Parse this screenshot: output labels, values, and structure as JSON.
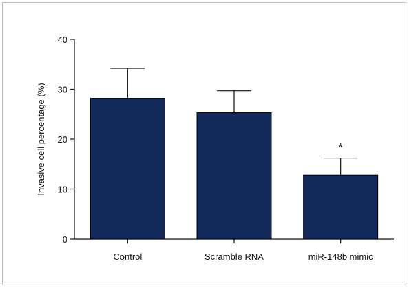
{
  "chart_data": {
    "type": "bar",
    "title": "",
    "xlabel": "",
    "ylabel": "Invasive cell percentage (%)",
    "ylim": [
      0,
      40
    ],
    "yticks": [
      0,
      10,
      20,
      30,
      40
    ],
    "categories": [
      "Control",
      "Scramble RNA",
      "miR-148b mimic"
    ],
    "values": [
      28.2,
      25.3,
      12.8
    ],
    "error_upper": [
      6.0,
      4.4,
      3.4
    ],
    "annotations": [
      "",
      "",
      "*"
    ],
    "bar_color": "#132a5a",
    "grid": false,
    "legend": "none"
  }
}
